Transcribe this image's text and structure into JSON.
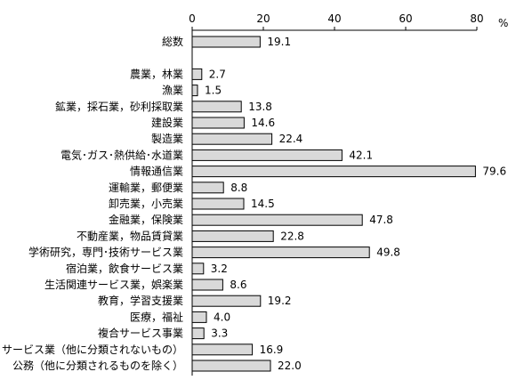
{
  "chart_data": {
    "type": "bar",
    "orientation": "horizontal",
    "unit": "%",
    "xlim": [
      0,
      80
    ],
    "ticks": [
      0,
      20,
      40,
      60,
      80
    ],
    "tick_labels": [
      "0",
      "20",
      "40",
      "60",
      "80"
    ],
    "axis_position": "top",
    "grid": false,
    "bar_color": "#d9d9d9",
    "bar_edge_color": "#000000",
    "categories": [
      "総数",
      "",
      "農業，林業",
      "漁業",
      "鉱業，採石業，砂利採取業",
      "建設業",
      "製造業",
      "電気･ガス･熱供給･水道業",
      "情報通信業",
      "運輸業，郵便業",
      "卸売業，小売業",
      "金融業，保険業",
      "不動産業，物品賃貸業",
      "学術研究，専門･技術サービス業",
      "宿泊業，飲食サービス業",
      "生活関連サービス業，娯楽業",
      "教育，学習支援業",
      "医療，福祉",
      "複合サービス事業",
      "サービス業（他に分類されないもの）",
      "公務（他に分類されるものを除く）"
    ],
    "values": [
      19.1,
      null,
      2.7,
      1.5,
      13.8,
      14.6,
      22.4,
      42.1,
      79.6,
      8.8,
      14.5,
      47.8,
      22.8,
      49.8,
      3.2,
      8.6,
      19.2,
      4.0,
      3.3,
      16.9,
      22.0
    ],
    "value_labels": [
      "19.1",
      "",
      "2.7",
      "1.5",
      "13.8",
      "14.6",
      "22.4",
      "42.1",
      "79.6",
      "8.8",
      "14.5",
      "47.8",
      "22.8",
      "49.8",
      "3.2",
      "8.6",
      "19.2",
      "4.0",
      "3.3",
      "16.9",
      "22.0"
    ]
  }
}
